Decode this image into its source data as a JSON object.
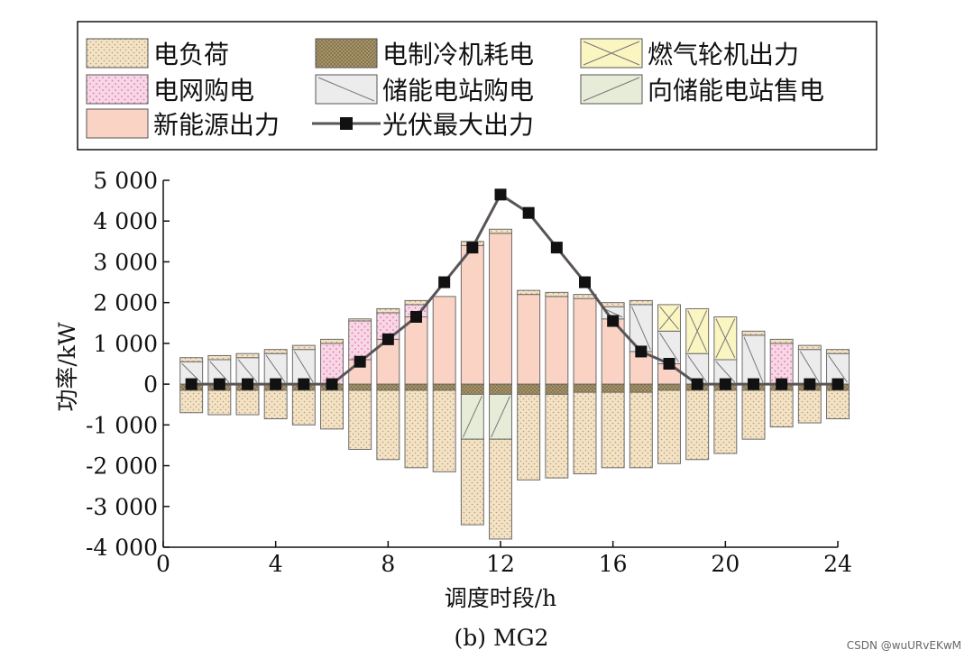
{
  "caption": "(b) MG2",
  "watermark": "CSDN @wuURvEKwM",
  "colors": {
    "load": "#f3e2c4",
    "cooling": "#b7a57b",
    "gas_turbine": "#fbf5c1",
    "grid_buy": "#f9d6e6",
    "storage_buy": "#ececec",
    "sell_to_storage": "#e7ecd8",
    "renewable": "#fad3c4",
    "pv_line": "#5a5458",
    "pv_marker": "#111111",
    "axis": "#111111"
  },
  "chart_data": {
    "type": "bar",
    "stacked": true,
    "xlabel": "调度时段/h",
    "ylabel": "功率/kW",
    "xlim": [
      0,
      24
    ],
    "ylim": [
      -4000,
      5000
    ],
    "xticks": [
      0,
      4,
      8,
      12,
      16,
      20,
      24
    ],
    "yticks": [
      5000,
      4000,
      3000,
      2000,
      1000,
      0,
      -1000,
      -2000,
      -3000,
      -4000
    ],
    "ytick_labels": [
      "5 000",
      "4 000",
      "3 000",
      "2 000",
      "1 000",
      "0",
      "-1 000",
      "-2 000",
      "-3 000",
      "-4 000"
    ],
    "grid": false,
    "legend_position": "top",
    "x": [
      1,
      2,
      3,
      4,
      5,
      6,
      7,
      8,
      9,
      10,
      11,
      12,
      13,
      14,
      15,
      16,
      17,
      18,
      19,
      20,
      21,
      22,
      23,
      24
    ],
    "series": [
      {
        "key": "renewable",
        "name": "新能源出力",
        "side": "positive",
        "values": [
          0,
          0,
          0,
          0,
          0,
          0,
          600,
          1100,
          1650,
          2150,
          3400,
          3700,
          2200,
          2150,
          2100,
          1600,
          800,
          500,
          0,
          0,
          0,
          0,
          0,
          0
        ]
      },
      {
        "key": "grid_buy",
        "name": "电网购电",
        "side": "positive",
        "values": [
          0,
          0,
          0,
          0,
          0,
          1000,
          950,
          650,
          300,
          0,
          0,
          0,
          0,
          0,
          0,
          0,
          0,
          0,
          0,
          0,
          0,
          1000,
          0,
          0
        ]
      },
      {
        "key": "storage_buy",
        "name": "储能电站购电",
        "side": "positive",
        "values": [
          550,
          600,
          650,
          750,
          850,
          0,
          0,
          0,
          0,
          0,
          0,
          0,
          0,
          0,
          0,
          300,
          1150,
          800,
          750,
          600,
          1200,
          0,
          850,
          750
        ]
      },
      {
        "key": "gas_turbine",
        "name": "燃气轮机出力",
        "side": "positive",
        "values": [
          0,
          0,
          0,
          0,
          0,
          0,
          0,
          0,
          0,
          0,
          0,
          0,
          0,
          0,
          0,
          0,
          0,
          650,
          1100,
          1050,
          0,
          0,
          0,
          0
        ]
      },
      {
        "key": "load_top",
        "name": "电负荷",
        "side": "positive_cap",
        "values": [
          100,
          100,
          100,
          100,
          100,
          100,
          50,
          100,
          100,
          0,
          100,
          100,
          100,
          100,
          100,
          100,
          100,
          0,
          0,
          0,
          100,
          100,
          100,
          100
        ]
      },
      {
        "key": "cooling",
        "name": "电制冷机耗电",
        "side": "negative",
        "values": [
          -150,
          -150,
          -150,
          -150,
          -150,
          -150,
          -150,
          -150,
          -150,
          -150,
          -250,
          -250,
          -250,
          -250,
          -200,
          -200,
          -200,
          -150,
          -150,
          -150,
          -150,
          -150,
          -150,
          -150
        ]
      },
      {
        "key": "sell_to_storage",
        "name": "向储能电站售电",
        "side": "negative",
        "values": [
          0,
          0,
          0,
          0,
          0,
          0,
          0,
          0,
          0,
          0,
          -1100,
          -1100,
          0,
          0,
          0,
          0,
          0,
          0,
          0,
          0,
          0,
          0,
          0,
          0
        ]
      },
      {
        "key": "load",
        "name": "电负荷",
        "side": "negative",
        "values": [
          -550,
          -600,
          -600,
          -700,
          -850,
          -950,
          -1450,
          -1700,
          -1900,
          -2000,
          -2100,
          -2450,
          -2100,
          -2050,
          -2000,
          -1850,
          -1850,
          -1800,
          -1700,
          -1550,
          -1200,
          -900,
          -800,
          -700
        ]
      },
      {
        "key": "pv_max",
        "name": "光伏最大出力",
        "type": "line",
        "values": [
          0,
          0,
          0,
          0,
          0,
          0,
          550,
          1100,
          1650,
          2500,
          3350,
          4650,
          4200,
          3350,
          2500,
          1550,
          800,
          500,
          0,
          0,
          0,
          0,
          0,
          0
        ]
      }
    ],
    "legend": [
      {
        "key": "load",
        "label": "电负荷",
        "kind": "box"
      },
      {
        "key": "cooling",
        "label": "电制冷机耗电",
        "kind": "box"
      },
      {
        "key": "gas_turbine",
        "label": "燃气轮机出力",
        "kind": "box"
      },
      {
        "key": "grid_buy",
        "label": "电网购电",
        "kind": "box"
      },
      {
        "key": "storage_buy",
        "label": "储能电站购电",
        "kind": "box"
      },
      {
        "key": "sell_to_storage",
        "label": "向储能电站售电",
        "kind": "box"
      },
      {
        "key": "renewable",
        "label": "新能源出力",
        "kind": "box"
      },
      {
        "key": "pv_max",
        "label": "光伏最大出力",
        "kind": "line"
      }
    ]
  }
}
